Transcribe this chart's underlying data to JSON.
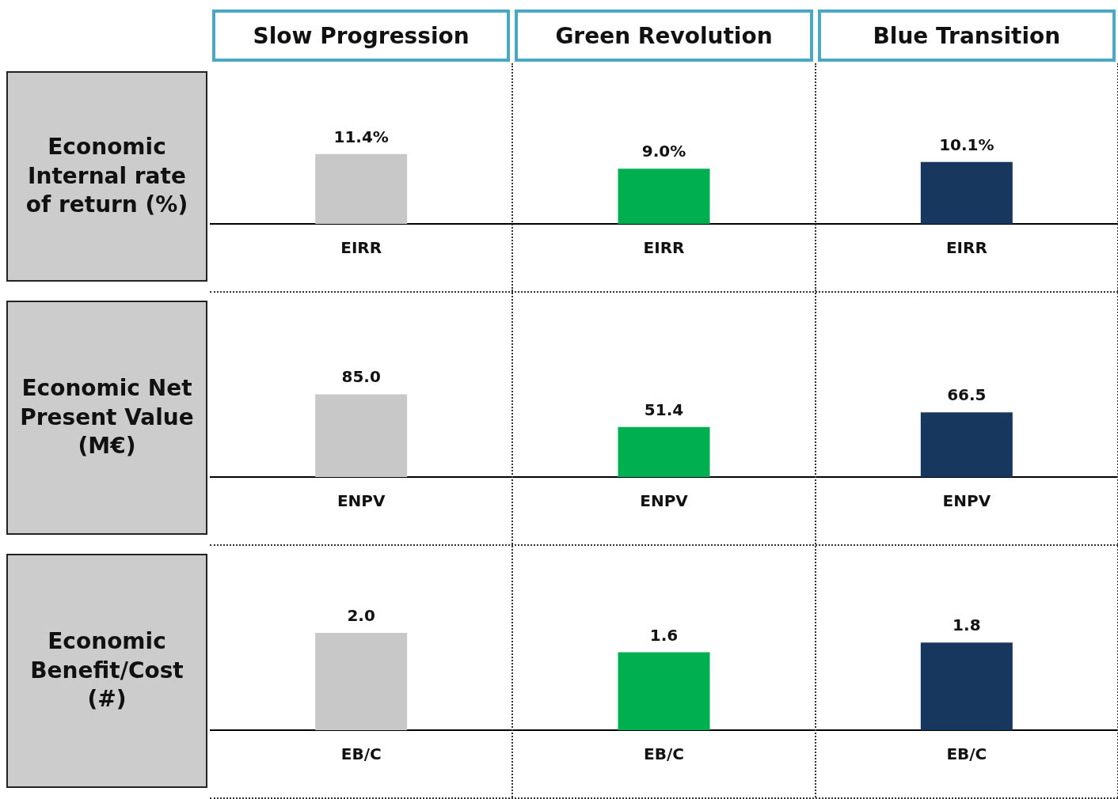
{
  "chart_data": [
    {
      "type": "other",
      "annotations": [
        "Slow Progression",
        "Green Revolution",
        "Blue Transition"
      ]
    },
    {
      "type": "bar",
      "ylabel": "Economic Internal rate of return (%)",
      "categories": [
        "EIRR",
        "EIRR",
        "EIRR"
      ],
      "values": [
        11.4,
        9.0,
        10.1
      ],
      "value_labels": [
        "11.4%",
        "9.0%",
        "10.1%"
      ],
      "colors": [
        "#c8c8c8",
        "#00b050",
        "#17375e"
      ]
    },
    {
      "type": "bar",
      "ylabel": "Economic Net Present Value (M€)",
      "categories": [
        "ENPV",
        "ENPV",
        "ENPV"
      ],
      "values": [
        85.0,
        51.4,
        66.5
      ],
      "value_labels": [
        "85.0",
        "51.4",
        "66.5"
      ],
      "colors": [
        "#c8c8c8",
        "#00b050",
        "#17375e"
      ]
    },
    {
      "type": "bar",
      "ylabel": "Economic Benefit/Cost (#)",
      "categories": [
        "EB/C",
        "EB/C",
        "EB/C"
      ],
      "values": [
        2.0,
        1.6,
        1.8
      ],
      "value_labels": [
        "2.0",
        "1.6",
        "1.8"
      ],
      "colors": [
        "#c8c8c8",
        "#00b050",
        "#17375e"
      ]
    }
  ]
}
